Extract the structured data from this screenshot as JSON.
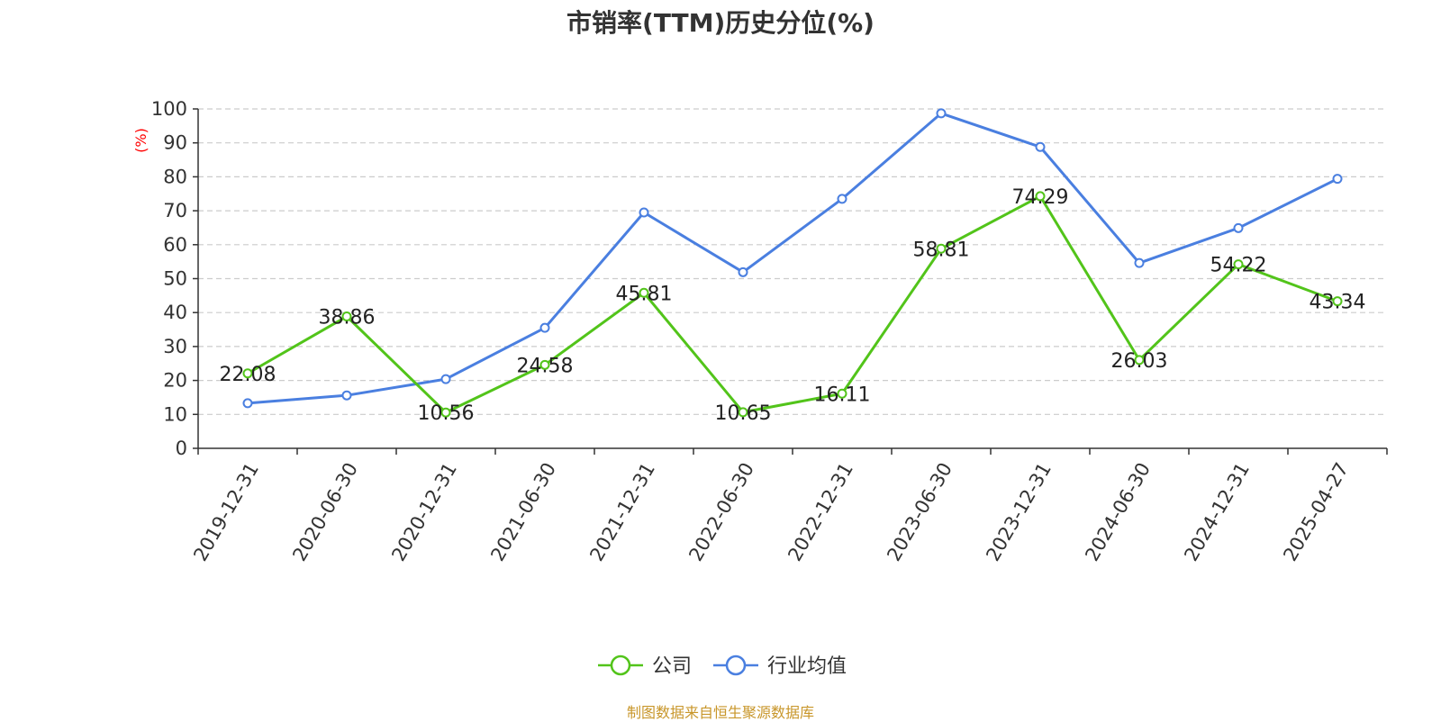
{
  "title": "市销率(TTM)历史分位(%)",
  "source": "制图数据来自恒生聚源数据库",
  "colors": {
    "company": "#52c41a",
    "industry": "#4a7fe0",
    "unit": "#ff0000",
    "source": "#c8962a"
  },
  "chart_data": {
    "type": "line",
    "title": "市销率(TTM)历史分位(%)",
    "ylabel": "(%)",
    "xlabel": "",
    "ylim": [
      0,
      100
    ],
    "yticks": [
      0,
      10,
      20,
      30,
      40,
      50,
      60,
      70,
      80,
      90,
      100
    ],
    "grid": true,
    "legend_position": "bottom",
    "categories": [
      "2019-12-31",
      "2020-06-30",
      "2020-12-31",
      "2021-06-30",
      "2021-12-31",
      "2022-06-30",
      "2022-12-31",
      "2023-06-30",
      "2023-12-31",
      "2024-06-30",
      "2024-12-31",
      "2025-04-27"
    ],
    "series": [
      {
        "name": "公司",
        "values": [
          22.08,
          38.86,
          10.56,
          24.58,
          45.81,
          10.65,
          16.11,
          58.81,
          74.29,
          26.03,
          54.22,
          43.34
        ],
        "labels": [
          "22.08",
          "38.86",
          "10.56",
          "24.58",
          "45.81",
          "10.65",
          "16.11",
          "58.81",
          "74.29",
          "26.03",
          "54.22",
          "43.34"
        ]
      },
      {
        "name": "行业均值",
        "values": [
          13.3,
          15.6,
          20.4,
          35.5,
          69.5,
          51.9,
          73.5,
          98.7,
          88.8,
          54.6,
          64.9,
          79.4
        ]
      }
    ]
  }
}
